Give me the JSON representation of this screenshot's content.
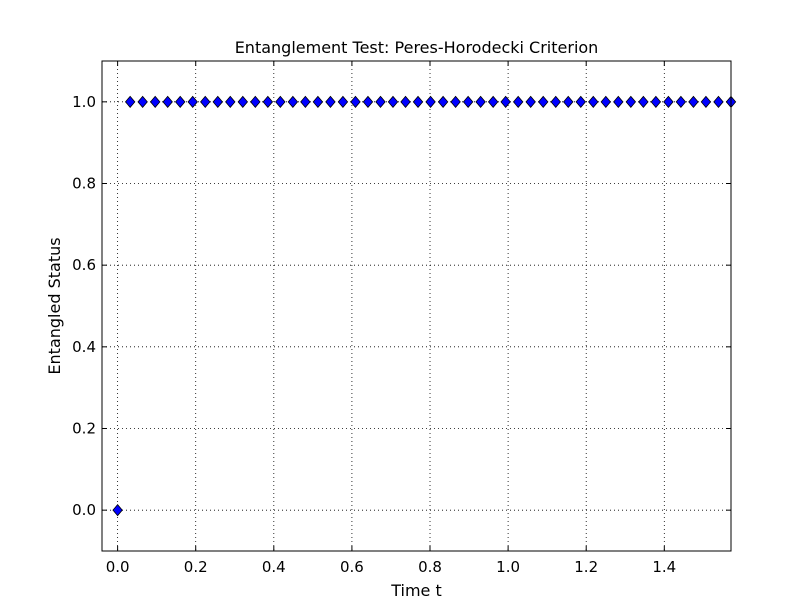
{
  "chart_data": {
    "type": "scatter",
    "title": "Entanglement Test: Peres-Horodecki Criterion",
    "xlabel": "Time t",
    "ylabel": "Entangled Status",
    "xlim": [
      -0.04,
      1.5708
    ],
    "ylim": [
      -0.1,
      1.1
    ],
    "xticks": [
      0.0,
      0.2,
      0.4,
      0.6,
      0.8,
      1.0,
      1.2,
      1.4
    ],
    "xtick_labels": [
      "0.0",
      "0.2",
      "0.4",
      "0.6",
      "0.8",
      "1.0",
      "1.2",
      "1.4"
    ],
    "yticks": [
      0.0,
      0.2,
      0.4,
      0.6,
      0.8,
      1.0
    ],
    "ytick_labels": [
      "0.0",
      "0.2",
      "0.4",
      "0.6",
      "0.8",
      "1.0"
    ],
    "grid": true,
    "marker": "diamond",
    "marker_color": "#0000ff",
    "series": [
      {
        "x": [
          0.0,
          0.0321,
          0.0641,
          0.0962,
          0.1282,
          0.1603,
          0.1923,
          0.2244,
          0.2565,
          0.2885,
          0.3206,
          0.3526,
          0.3847,
          0.4167,
          0.4488,
          0.4808,
          0.5129,
          0.545,
          0.577,
          0.6091,
          0.6411,
          0.6732,
          0.7052,
          0.7373,
          0.7693,
          0.8014,
          0.8335,
          0.8655,
          0.8976,
          0.9296,
          0.9617,
          0.9937,
          1.0258,
          1.0578,
          1.0899,
          1.122,
          1.154,
          1.1861,
          1.2181,
          1.2502,
          1.2822,
          1.3143,
          1.3464,
          1.3784,
          1.4105,
          1.4425,
          1.4746,
          1.5066,
          1.5387,
          1.5708
        ],
        "y": [
          0,
          1,
          1,
          1,
          1,
          1,
          1,
          1,
          1,
          1,
          1,
          1,
          1,
          1,
          1,
          1,
          1,
          1,
          1,
          1,
          1,
          1,
          1,
          1,
          1,
          1,
          1,
          1,
          1,
          1,
          1,
          1,
          1,
          1,
          1,
          1,
          1,
          1,
          1,
          1,
          1,
          1,
          1,
          1,
          1,
          1,
          1,
          1,
          1,
          1
        ]
      }
    ]
  }
}
